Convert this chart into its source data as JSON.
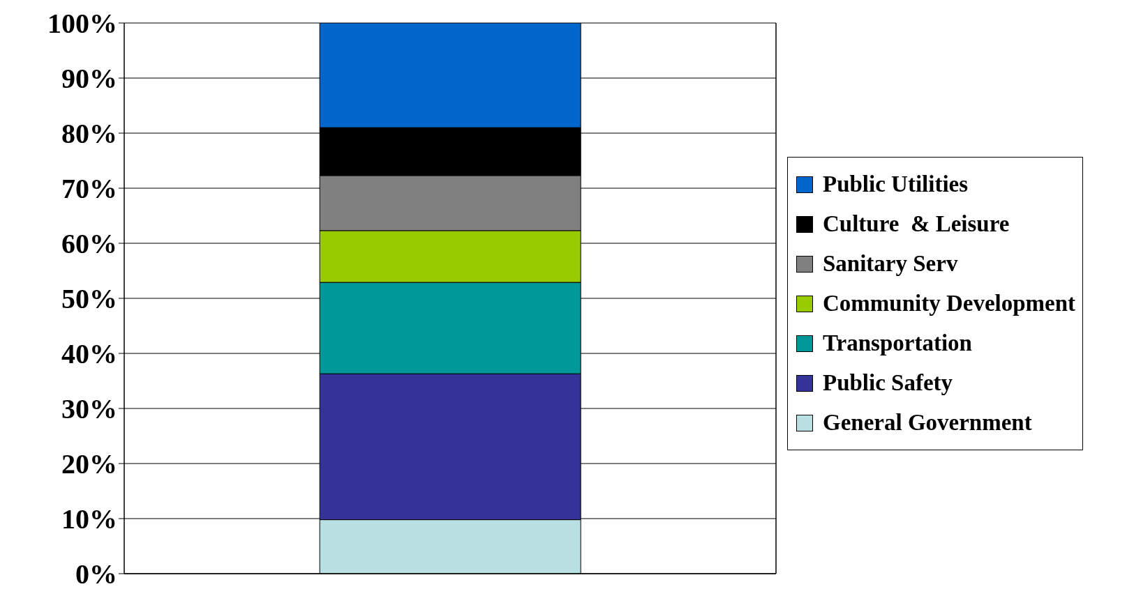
{
  "chart_data": {
    "type": "bar",
    "stacked": true,
    "categories": [
      null
    ],
    "series": [
      {
        "name": "General Government",
        "color": "#b8e0e3",
        "values": [
          9.8
        ]
      },
      {
        "name": "Public Safety",
        "color": "#333399",
        "values": [
          26.5
        ]
      },
      {
        "name": "Transportation",
        "color": "#009999",
        "values": [
          16.6
        ]
      },
      {
        "name": "Community Development",
        "color": "#99cc00",
        "values": [
          9.4
        ]
      },
      {
        "name": "Sanitary Serv",
        "color": "#808080",
        "values": [
          10.0
        ]
      },
      {
        "name": "Culture  & Leisure",
        "color": "#000000",
        "values": [
          8.7
        ]
      },
      {
        "name": "Public Utilities",
        "color": "#0066cc",
        "values": [
          19.0
        ]
      }
    ],
    "ylim": [
      0,
      100
    ],
    "yticks": [
      {
        "value": 0,
        "label": "0%"
      },
      {
        "value": 10,
        "label": "10%"
      },
      {
        "value": 20,
        "label": "20%"
      },
      {
        "value": 30,
        "label": "30%"
      },
      {
        "value": 40,
        "label": "40%"
      },
      {
        "value": 50,
        "label": "50%"
      },
      {
        "value": 60,
        "label": "60%"
      },
      {
        "value": 70,
        "label": "70%"
      },
      {
        "value": 80,
        "label": "80%"
      },
      {
        "value": 90,
        "label": "90%"
      },
      {
        "value": 100,
        "label": "100%"
      }
    ],
    "grid": "y",
    "legend": "right",
    "tick_labels": "y"
  }
}
